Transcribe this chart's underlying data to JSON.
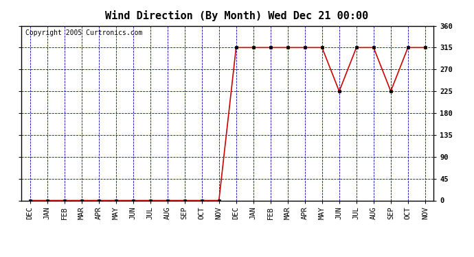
{
  "title": "Wind Direction (By Month) Wed Dec 21 00:00",
  "copyright": "Copyright 2005 Curtronics.com",
  "x_labels": [
    "DEC",
    "JAN",
    "FEB",
    "MAR",
    "APR",
    "MAY",
    "JUN",
    "JUL",
    "AUG",
    "SEP",
    "OCT",
    "NOV",
    "DEC",
    "JAN",
    "FEB",
    "MAR",
    "APR",
    "MAY",
    "JUN",
    "JUL",
    "AUG",
    "SEP",
    "OCT",
    "NOV"
  ],
  "y_values": [
    0,
    0,
    0,
    0,
    0,
    0,
    0,
    0,
    0,
    0,
    0,
    0,
    315,
    315,
    315,
    315,
    315,
    315,
    225,
    315,
    315,
    225,
    315,
    315
  ],
  "y_ticks": [
    0,
    45,
    90,
    135,
    180,
    225,
    270,
    315,
    360
  ],
  "ylim": [
    0,
    360
  ],
  "line_color": "#cc0000",
  "marker_color": "#000000",
  "grid_color": "#0000bb",
  "bg_color": "#ffffff",
  "title_color": "#000000",
  "copyright_color": "#000000",
  "title_fontsize": 11,
  "copyright_fontsize": 7,
  "tick_label_fontsize": 7.5
}
